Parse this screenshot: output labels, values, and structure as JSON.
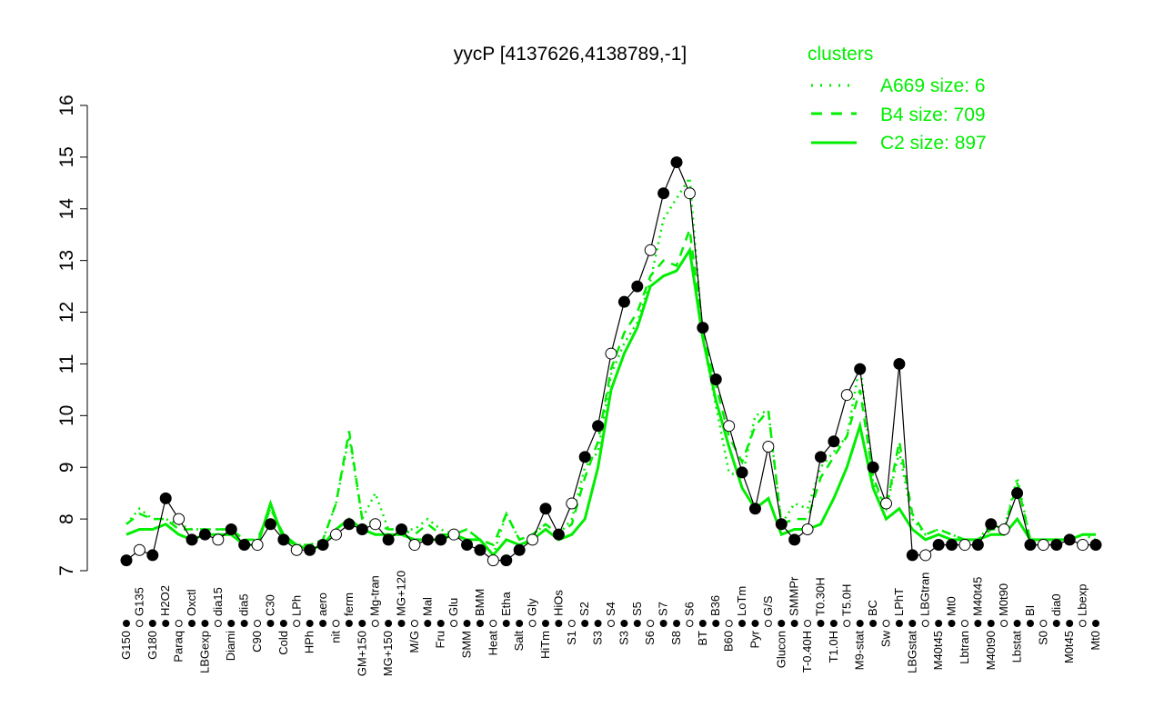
{
  "chart_data": {
    "type": "line",
    "title": "yycP [4137626,4138789,-1]",
    "xlabel": "",
    "ylabel": "",
    "ylim": [
      7,
      16
    ],
    "yticks": [
      7,
      8,
      9,
      10,
      11,
      12,
      13,
      14,
      15,
      16
    ],
    "grid": false,
    "legend": {
      "title": "clusters",
      "placement": "top-right",
      "color": "#00ee00",
      "entries": [
        {
          "label": "A669 size: 6",
          "style": "dotted"
        },
        {
          "label": "B4 size: 709",
          "style": "dashed"
        },
        {
          "label": "C2 size: 897",
          "style": "solid"
        }
      ]
    },
    "categories": [
      "G150",
      "G135",
      "G180",
      "H2O2",
      "Paraq",
      "Oxctl",
      "LBGexp",
      "dia15",
      "Diami",
      "dia5",
      "C90",
      "C30",
      "Cold",
      "LPh",
      "HPh",
      "aero",
      "nit",
      "ferm",
      "GM+150",
      "Mg-tran",
      "MG+150",
      "MG+120",
      "M/G",
      "Mal",
      "Fru",
      "Glu",
      "SMM",
      "BMM",
      "Heat",
      "Etha",
      "Salt",
      "Gly",
      "HiTm",
      "HiOs",
      "S1",
      "S2",
      "S3",
      "S4",
      "S3",
      "S5",
      "S6",
      "S7",
      "S8",
      "S6",
      "BT",
      "B36",
      "B60",
      "LoTm",
      "Pyr",
      "G/S",
      "Glucon",
      "SMMPr",
      "T-0.40H",
      "T0.30H",
      "T1.0H",
      "T5.0H",
      "M9-stat",
      "BC",
      "Sw",
      "LPhT",
      "LBGstat",
      "LBGtran",
      "M40t45",
      "Mt0",
      "Lbtran",
      "M40t45",
      "M40t90",
      "M0t90",
      "Lbstat",
      "BI",
      "S0",
      "dia0",
      "M0t45",
      "Lbexp",
      "Mt0"
    ],
    "values": [
      7.2,
      7.4,
      7.3,
      8.4,
      8.0,
      7.6,
      7.7,
      7.6,
      7.8,
      7.5,
      7.5,
      7.9,
      7.6,
      7.4,
      7.4,
      7.5,
      7.7,
      7.9,
      7.8,
      7.9,
      7.6,
      7.8,
      7.5,
      7.6,
      7.6,
      7.7,
      7.5,
      7.4,
      7.2,
      7.2,
      7.4,
      7.6,
      8.2,
      7.7,
      8.3,
      9.2,
      9.8,
      11.2,
      12.2,
      12.5,
      13.2,
      14.3,
      14.9,
      14.3,
      11.7,
      10.7,
      9.8,
      8.9,
      8.2,
      9.4,
      7.9,
      7.6,
      7.8,
      9.2,
      9.5,
      10.4,
      10.9,
      9.0,
      8.3,
      11.0,
      7.3,
      7.3,
      7.5,
      7.5,
      7.5,
      7.5,
      7.9,
      7.8,
      8.5,
      7.5,
      7.5,
      7.5,
      7.6,
      7.5,
      7.5
    ],
    "series": [
      {
        "name": "A669 size: 6",
        "values": [
          7.9,
          8.2,
          8.0,
          8.0,
          7.9,
          7.8,
          7.8,
          7.8,
          7.8,
          7.6,
          7.6,
          8.2,
          7.7,
          7.5,
          7.5,
          7.6,
          8.3,
          9.6,
          8.0,
          8.5,
          7.8,
          7.8,
          7.8,
          8.0,
          7.8,
          7.7,
          7.8,
          7.6,
          7.3,
          8.1,
          7.6,
          7.7,
          7.9,
          7.7,
          8.0,
          9.0,
          9.3,
          10.8,
          11.4,
          11.8,
          12.6,
          13.8,
          14.2,
          14.6,
          11.5,
          10.2,
          8.9,
          8.8,
          10.0,
          10.1,
          7.9,
          8.3,
          8.2,
          9.0,
          9.3,
          9.6,
          11.0,
          8.7,
          8.2,
          9.3,
          8.0,
          7.7,
          7.8,
          7.7,
          7.6,
          7.6,
          7.9,
          7.8,
          8.8,
          7.6,
          7.6,
          7.6,
          7.6,
          7.7,
          7.6
        ]
      },
      {
        "name": "B4 size: 709",
        "values": [
          7.9,
          8.1,
          8.0,
          8.0,
          7.8,
          7.8,
          7.8,
          7.8,
          7.8,
          7.6,
          7.6,
          8.2,
          7.7,
          7.5,
          7.5,
          7.6,
          8.3,
          9.7,
          8.0,
          7.9,
          7.8,
          7.8,
          7.7,
          7.9,
          7.7,
          7.7,
          7.8,
          7.6,
          7.5,
          8.1,
          7.6,
          7.7,
          7.9,
          7.7,
          7.9,
          8.8,
          9.5,
          10.9,
          11.6,
          12.0,
          12.7,
          13.0,
          12.9,
          13.6,
          11.6,
          10.6,
          9.6,
          9.1,
          9.8,
          10.1,
          7.9,
          8.0,
          8.0,
          8.8,
          9.2,
          9.6,
          10.5,
          8.8,
          8.2,
          9.5,
          8.1,
          7.7,
          7.8,
          7.7,
          7.6,
          7.6,
          7.8,
          7.8,
          8.7,
          7.6,
          7.6,
          7.6,
          7.6,
          7.7,
          7.7
        ]
      },
      {
        "name": "C2 size: 897",
        "values": [
          7.7,
          7.8,
          7.8,
          7.9,
          7.7,
          7.6,
          7.7,
          7.7,
          7.7,
          7.5,
          7.5,
          8.3,
          7.6,
          7.5,
          7.4,
          7.5,
          7.8,
          8.0,
          7.8,
          7.7,
          7.7,
          7.7,
          7.6,
          7.6,
          7.6,
          7.7,
          7.6,
          7.6,
          7.3,
          7.6,
          7.5,
          7.6,
          7.8,
          7.6,
          7.7,
          8.0,
          9.0,
          10.5,
          11.2,
          11.7,
          12.5,
          12.7,
          12.8,
          13.2,
          11.5,
          10.3,
          9.4,
          8.6,
          8.2,
          8.4,
          7.7,
          7.8,
          7.8,
          7.9,
          8.4,
          9.0,
          9.8,
          8.6,
          8.0,
          8.2,
          7.8,
          7.6,
          7.7,
          7.6,
          7.6,
          7.6,
          7.7,
          7.7,
          8.0,
          7.6,
          7.6,
          7.6,
          7.6,
          7.7,
          7.7
        ]
      }
    ]
  }
}
